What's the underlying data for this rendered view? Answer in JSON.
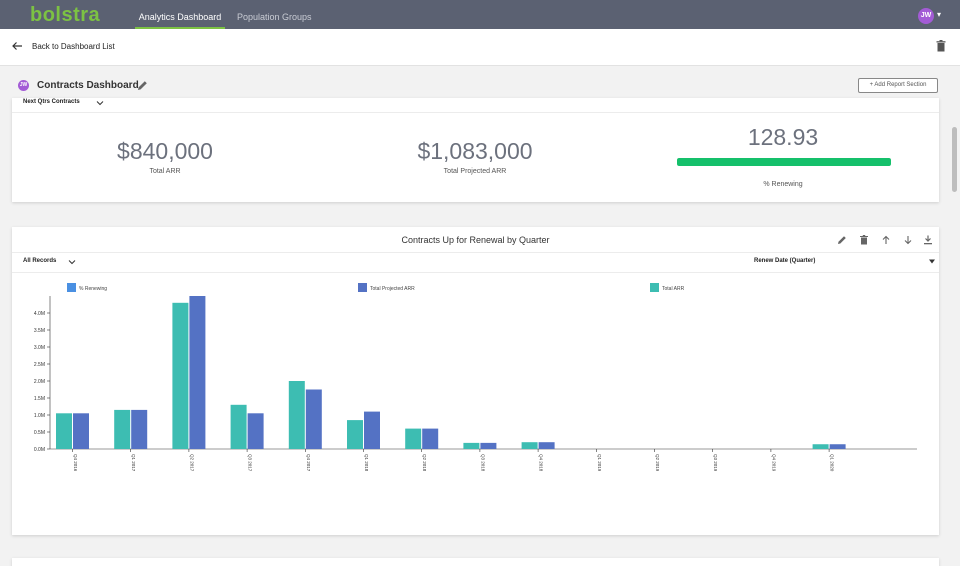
{
  "nav": {
    "logo": "bolstra",
    "tabs": [
      {
        "label": "Analytics Dashboard",
        "active": true
      },
      {
        "label": "Population Groups",
        "active": false
      }
    ],
    "user_initials": "JW"
  },
  "subheader": {
    "back_label": "Back to Dashboard List"
  },
  "dashboard": {
    "badge": "JW",
    "title": "Contracts Dashboard",
    "add_section_label": "+ Add Report Section"
  },
  "summary_card": {
    "filter_label": "Next Qtrs Contracts",
    "metrics": [
      {
        "value": "$840,000",
        "label": "Total ARR"
      },
      {
        "value": "$1,083,000",
        "label": "Total Projected ARR"
      },
      {
        "value": "128.93",
        "label": "% Renewing"
      }
    ],
    "progress_fraction": 1.0,
    "progress_color": "#15c06b"
  },
  "chart_card": {
    "filter_label": "All Records",
    "group_by_label": "Renew Date (Quarter)"
  },
  "chart_data": {
    "type": "bar",
    "title": "Contracts Up for Renewal by Quarter",
    "legend": [
      {
        "name": "% Renewing",
        "color": "#4a90e2"
      },
      {
        "name": "Total Projected ARR",
        "color": "#5472c4"
      },
      {
        "name": "Total ARR",
        "color": "#3dbdb2"
      }
    ],
    "categories": [
      "Q4 2016",
      "Q1 2017",
      "Q2 2017",
      "Q3 2017",
      "Q4 2017",
      "Q1 2018",
      "Q2 2018",
      "Q3 2018",
      "Q4 2018",
      "Q1 2019",
      "Q2 2019",
      "Q3 2019",
      "Q4 2019",
      "Q1 2020"
    ],
    "series": [
      {
        "name": "Total ARR",
        "color": "#3dbdb2",
        "values": [
          1.05,
          1.15,
          4.3,
          1.3,
          2.0,
          0.85,
          0.6,
          0.18,
          0.2,
          0,
          0,
          0,
          0,
          0.14
        ]
      },
      {
        "name": "Total Projected ARR",
        "color": "#5472c4",
        "values": [
          1.05,
          1.15,
          4.5,
          1.05,
          1.75,
          1.1,
          0.6,
          0.18,
          0.2,
          0,
          0,
          0,
          0,
          0.14
        ]
      }
    ],
    "yticks": [
      "0.0M",
      "0.5M",
      "1.0M",
      "1.5M",
      "2.0M",
      "2.5M",
      "3.0M",
      "3.5M",
      "4.0M"
    ],
    "ylim": [
      0,
      4.5
    ]
  }
}
